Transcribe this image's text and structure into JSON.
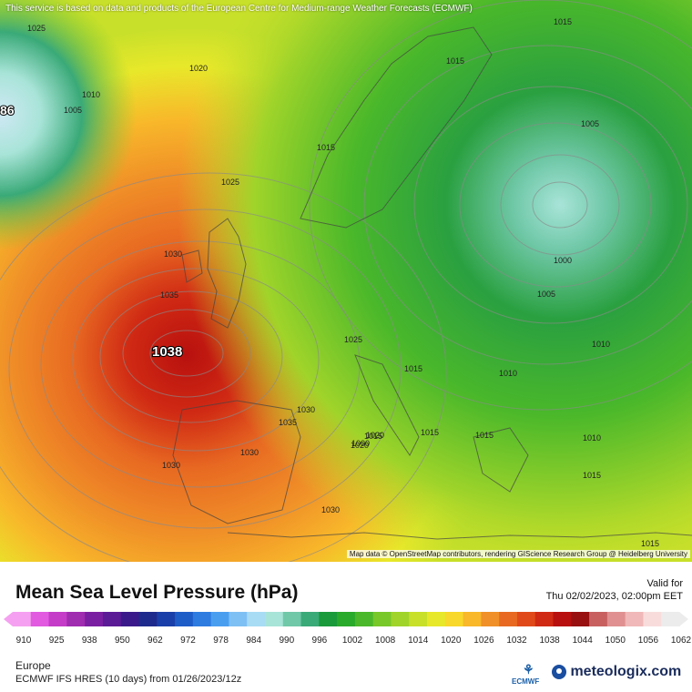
{
  "map": {
    "disclaimer": "This service is based on data and products of the European Centre for Medium-range Weather Forecasts (ECMWF)",
    "attribution": "Map data © OpenStreetMap contributors, rendering GIScience Research Group @ Heidelberg University",
    "high_label": "1038",
    "low_label_edge": "86",
    "isobar_labels": [
      "1025",
      "1020",
      "1010",
      "1005",
      "1015",
      "1025",
      "1030",
      "1035",
      "1030",
      "1035",
      "1030",
      "1030",
      "1030",
      "1025",
      "1020",
      "1015",
      "1015",
      "1015",
      "1010",
      "1000",
      "1005",
      "1010",
      "1010",
      "1015",
      "1015",
      "1015",
      "1015",
      "1005",
      "1000",
      "1020",
      "1015"
    ]
  },
  "panel": {
    "title": "Mean Sea Level Pressure (hPa)",
    "valid_label": "Valid for",
    "valid_time": "Thu 02/02/2023, 02:00pm EET",
    "scale_ticks": [
      "910",
      "925",
      "938",
      "950",
      "962",
      "972",
      "978",
      "984",
      "990",
      "996",
      "1002",
      "1008",
      "1014",
      "1020",
      "1026",
      "1032",
      "1038",
      "1044",
      "1050",
      "1056",
      "1062"
    ],
    "scale_colors": [
      "#f5a0f0",
      "#e15ae0",
      "#c43cc8",
      "#a02cb0",
      "#7b1fa2",
      "#5b1a96",
      "#3a1a8a",
      "#1e2a8c",
      "#1a3fa8",
      "#1e5cc8",
      "#2e7ce0",
      "#4a9ef0",
      "#7ec0f4",
      "#a8dcf4",
      "#a8e4d8",
      "#70c8a8",
      "#3aaa78",
      "#1a9a3a",
      "#2aaa2a",
      "#4ab82a",
      "#78c82a",
      "#a0d42a",
      "#c8e02a",
      "#e8e82a",
      "#f8d82a",
      "#f8b82a",
      "#f09028",
      "#e86a22",
      "#e04a1a",
      "#d02a14",
      "#b8100e",
      "#981010",
      "#c86060",
      "#e09090",
      "#f0b8b8",
      "#f8dcdc",
      "#ececec"
    ],
    "region": "Europe",
    "model": "ECMWF IFS HRES (10 days) from  01/26/2023/12z",
    "ecmwf_text": "ECMWF",
    "brand": "meteologix.com"
  }
}
